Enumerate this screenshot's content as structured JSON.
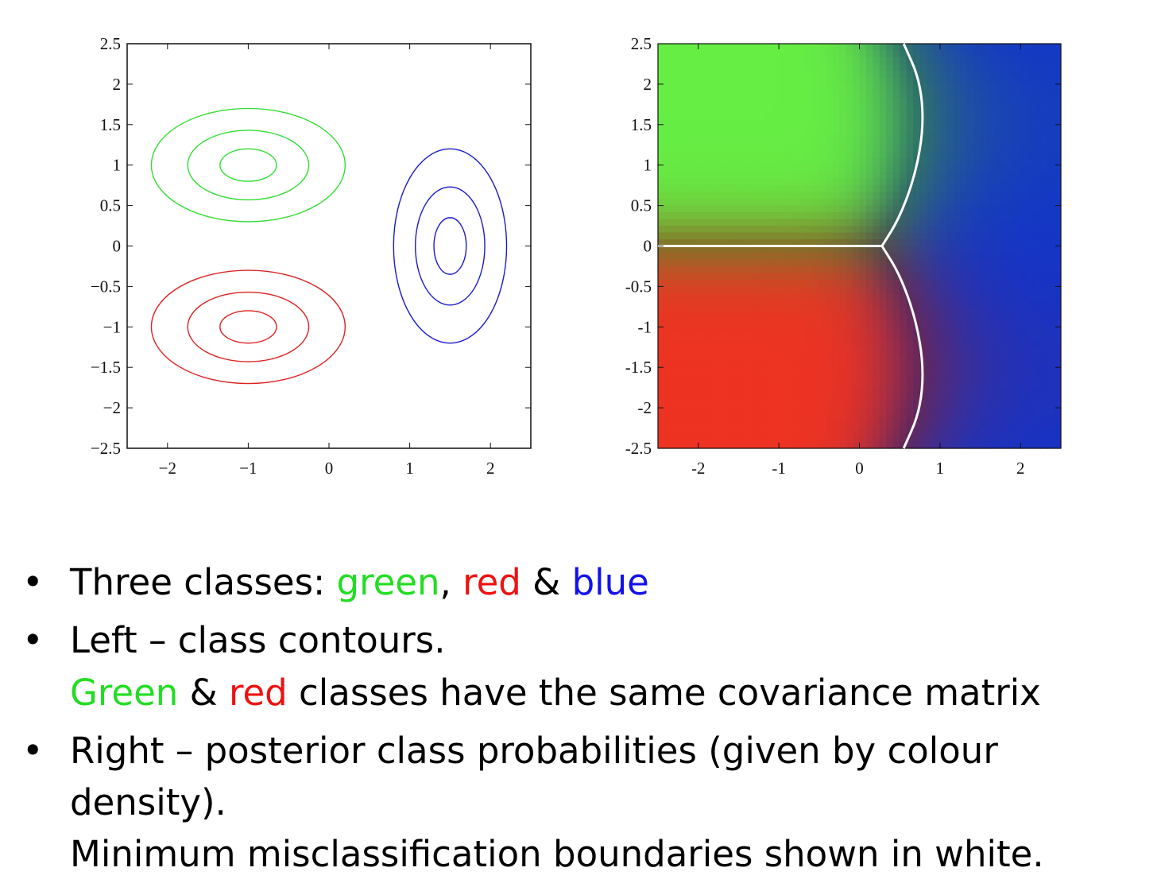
{
  "chart_data": [
    {
      "type": "contour",
      "x_ticks": [
        "−2",
        "−1",
        "0",
        "1",
        "2"
      ],
      "y_ticks": [
        "2.5",
        "2",
        "1.5",
        "1",
        "0.5",
        "0",
        "−0.5",
        "−1",
        "−1.5",
        "−2",
        "−2.5"
      ],
      "xlim": [
        -2.5,
        2.5
      ],
      "ylim": [
        -2.5,
        2.5
      ],
      "series": [
        {
          "color": "#33dd33",
          "center": [
            -1,
            1
          ],
          "radii": [
            [
              0.35,
              0.2
            ],
            [
              0.75,
              0.43
            ],
            [
              1.2,
              0.7
            ]
          ]
        },
        {
          "color": "#dd2222",
          "center": [
            -1,
            -1
          ],
          "radii": [
            [
              0.35,
              0.2
            ],
            [
              0.75,
              0.43
            ],
            [
              1.2,
              0.7
            ]
          ]
        },
        {
          "color": "#1a1acc",
          "center": [
            1.5,
            0
          ],
          "radii": [
            [
              0.2,
              0.35
            ],
            [
              0.43,
              0.73
            ],
            [
              0.7,
              1.2
            ]
          ]
        }
      ]
    },
    {
      "type": "heatmap",
      "x_ticks": [
        "-2",
        "-1",
        "0",
        "1",
        "2"
      ],
      "y_ticks": [
        "2.5",
        "2",
        "1.5",
        "1",
        "0.5",
        "0",
        "-0.5",
        "-1",
        "-1.5",
        "-2",
        "-2.5"
      ],
      "xlim": [
        -2.5,
        2.5
      ],
      "ylim": [
        -2.5,
        2.5
      ],
      "colors": {
        "green": "#66ee44",
        "red": "#ee3322",
        "blue": "#1133cc"
      },
      "boundary_color": "#ffffff",
      "boundaries": [
        {
          "name": "green-red",
          "points": [
            [
              -2.5,
              0
            ],
            [
              0.28,
              0
            ]
          ]
        },
        {
          "name": "green-blue",
          "points": [
            [
              0.28,
              0
            ],
            [
              0.5,
              0.35
            ],
            [
              0.7,
              0.9
            ],
            [
              0.8,
              1.5
            ],
            [
              0.75,
              2.05
            ],
            [
              0.55,
              2.5
            ]
          ]
        },
        {
          "name": "red-blue",
          "points": [
            [
              0.28,
              0
            ],
            [
              0.5,
              -0.35
            ],
            [
              0.7,
              -0.9
            ],
            [
              0.8,
              -1.5
            ],
            [
              0.75,
              -2.05
            ],
            [
              0.55,
              -2.5
            ]
          ]
        }
      ]
    }
  ],
  "bullets": [
    {
      "prefix": "Three classes: ",
      "w1": "green",
      "sep1": ", ",
      "w2": "red",
      "sep2": " & ",
      "w3": "blue"
    },
    {
      "line1": "Left – class contours.",
      "w1": "Green",
      "sep1": " & ",
      "w2": "red",
      "rest": " classes have the same covariance matrix"
    },
    {
      "line1": "Right – posterior class probabilities (given by colour density).",
      "line2": "Minimum misclassification boundaries shown in white."
    }
  ]
}
